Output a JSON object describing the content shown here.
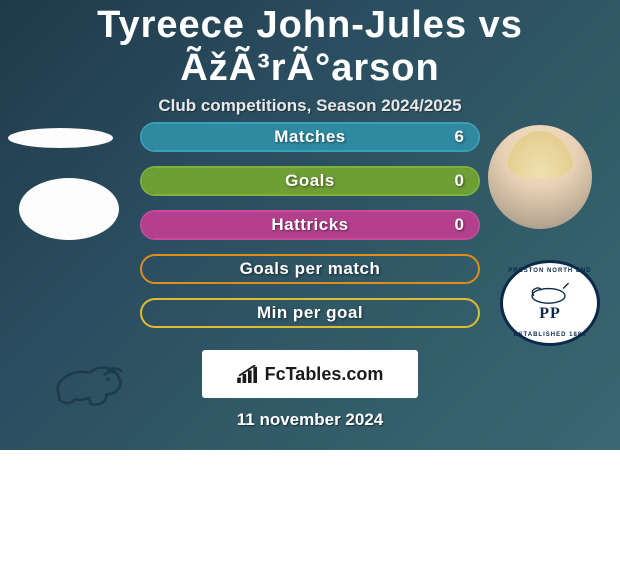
{
  "title": "Tyreece John-Jules vs ÃžÃ³rÃ°arson",
  "subtitle": "Club competitions, Season 2024/2025",
  "date": "11 november 2024",
  "branding": "FcTables.com",
  "colors": {
    "bg_grad_from": "#1f3a4a",
    "bg_grad_to": "#3a6773",
    "bar1_border": "#3aa0b8",
    "bar1_fill": "#2f8aa1",
    "bar2_border": "#7fb23c",
    "bar2_fill": "#6f9e34",
    "bar3_border": "#c94a9e",
    "bar3_fill": "#b43f8c",
    "bar4_border": "#e28c1b",
    "bar5_border": "#e0bb36",
    "text": "#ffffff",
    "brand_bg": "#ffffff",
    "brand_text": "#1a1a1a",
    "navy": "#0b2a4a"
  },
  "stats": [
    {
      "label": "Matches",
      "value": "6",
      "fill_pct": 100,
      "border": "#3aa0b8",
      "fill": "#2f8aa1"
    },
    {
      "label": "Goals",
      "value": "0",
      "fill_pct": 100,
      "border": "#7fb23c",
      "fill": "#6f9e34"
    },
    {
      "label": "Hattricks",
      "value": "0",
      "fill_pct": 100,
      "border": "#c94a9e",
      "fill": "#b43f8c"
    },
    {
      "label": "Goals per match",
      "value": "",
      "fill_pct": 0,
      "border": "#e28c1b",
      "fill": "#e28c1b"
    },
    {
      "label": "Min per goal",
      "value": "",
      "fill_pct": 0,
      "border": "#e0bb36",
      "fill": "#e0bb36"
    }
  ],
  "left_badges": {
    "top_shape": "ellipse-white",
    "bottom_shape": "derby-ram"
  },
  "right_badges": {
    "top_shape": "player-headshot",
    "bottom_shape": "preston-north-end",
    "pne_text": "PP",
    "pne_arc_top": "PRESTON NORTH END",
    "pne_arc_bottom": "ESTABLISHED 1880"
  }
}
